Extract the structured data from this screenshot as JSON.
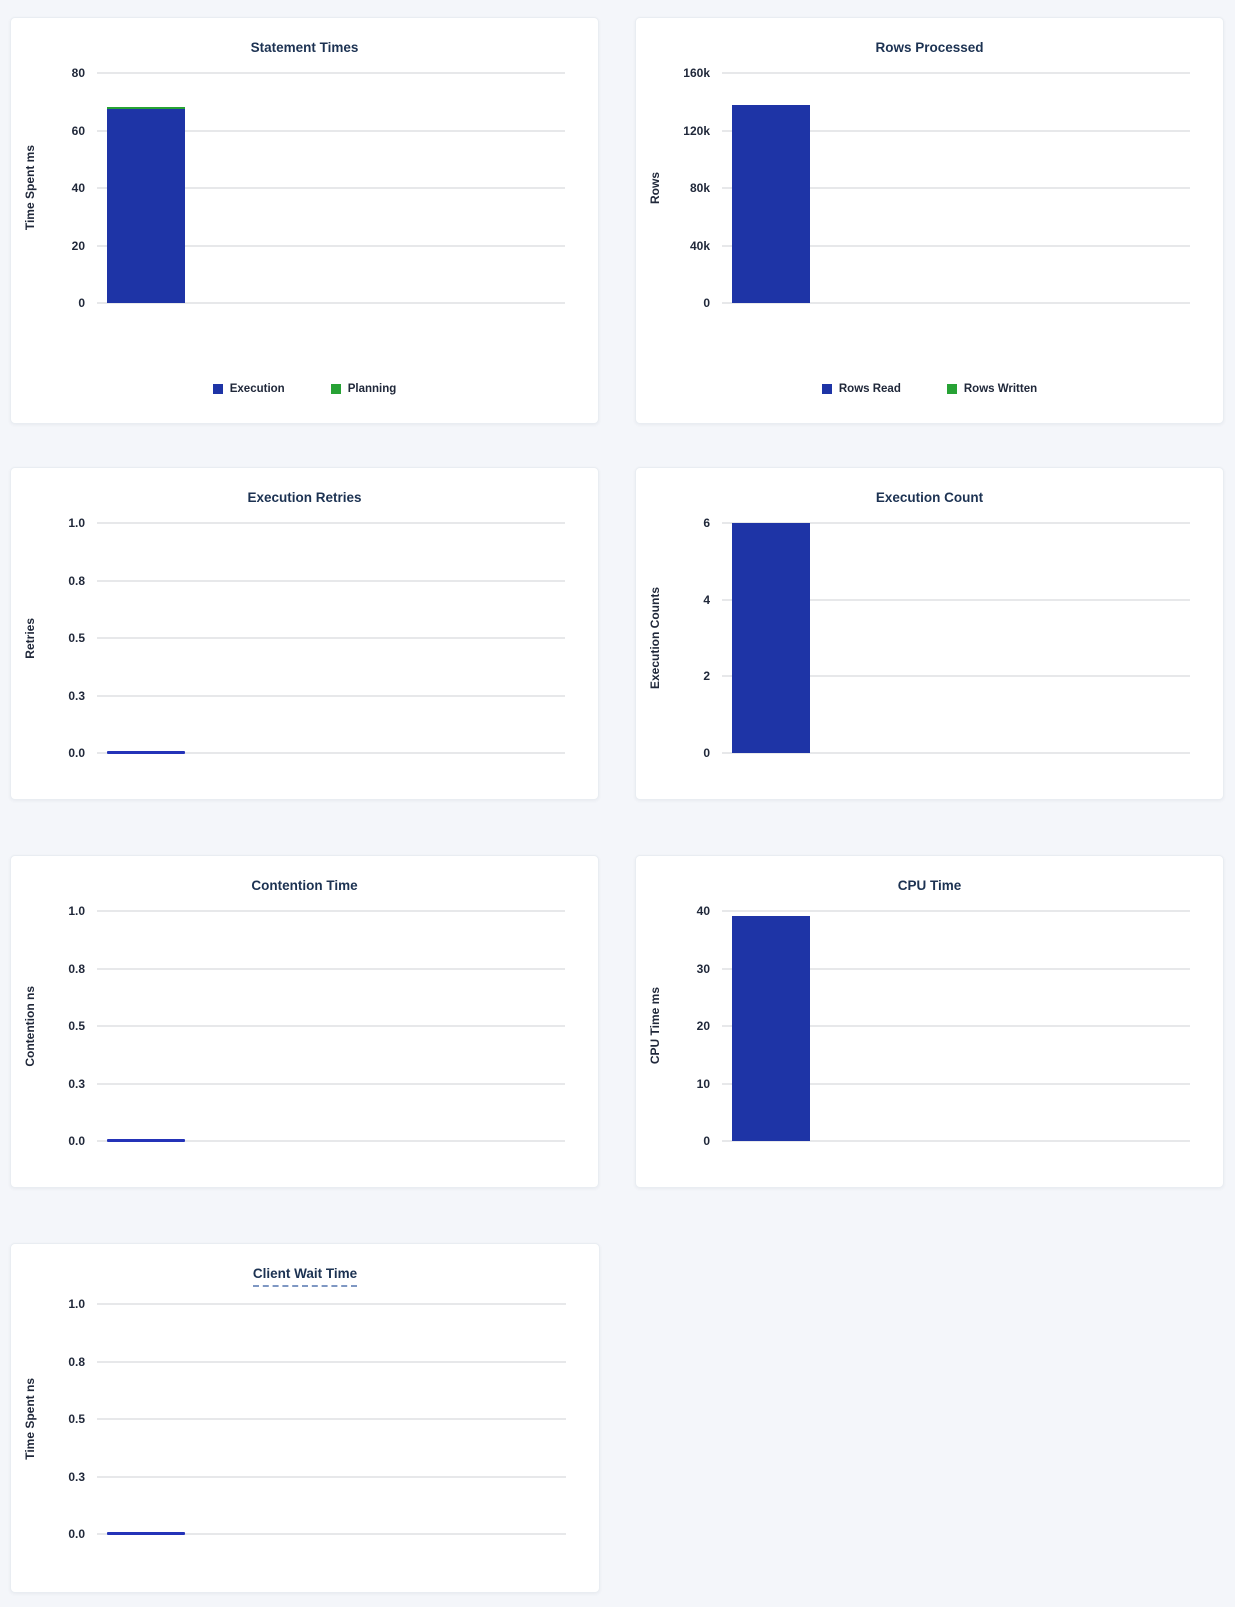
{
  "page": {
    "background_color": "#f4f6fa",
    "card_background": "#ffffff",
    "title_color": "#1c3252",
    "bar_blue": "#1e34a6",
    "bar_green": "#27a235",
    "zero_line_blue": "#2433b8"
  },
  "chart_data": [
    {
      "type": "bar",
      "title": "Statement Times",
      "ylabel": "Time Spent ms",
      "yticks": [
        "80",
        "60",
        "40",
        "20",
        "0"
      ],
      "ymax": 80,
      "ylim": [
        0,
        80
      ],
      "grid": "horizontal",
      "legend_position": "bottom",
      "series": [
        {
          "name": "Execution",
          "value": 67.5,
          "color": "#1e34a6"
        },
        {
          "name": "Planning",
          "value": 0.6,
          "color": "#27a235"
        }
      ],
      "legend": [
        {
          "label": "Execution",
          "color": "#1e34a6"
        },
        {
          "label": "Planning",
          "color": "#27a235"
        }
      ],
      "zero_line": false
    },
    {
      "type": "bar",
      "title": "Rows Processed",
      "ylabel": "Rows",
      "yticks": [
        "160k",
        "120k",
        "80k",
        "40k",
        "0"
      ],
      "ymax": 160000,
      "ylim": [
        0,
        160000
      ],
      "grid": "horizontal",
      "legend_position": "bottom",
      "series": [
        {
          "name": "Rows Read",
          "value": 137500,
          "color": "#1e34a6"
        },
        {
          "name": "Rows Written",
          "value": 0,
          "color": "#27a235"
        }
      ],
      "legend": [
        {
          "label": "Rows Read",
          "color": "#1e34a6"
        },
        {
          "label": "Rows Written",
          "color": "#27a235"
        }
      ],
      "zero_line": false
    },
    {
      "type": "bar",
      "title": "Execution Retries",
      "ylabel": "Retries",
      "yticks": [
        "1.0",
        "0.8",
        "0.5",
        "0.3",
        "0.0"
      ],
      "ymax": 1,
      "ylim": [
        0,
        1
      ],
      "grid": "horizontal",
      "series": [
        {
          "name": "Retries",
          "value": 0,
          "color": "#2433b8"
        }
      ],
      "zero_line": true
    },
    {
      "type": "bar",
      "title": "Execution Count",
      "ylabel": "Execution Counts",
      "yticks": [
        "6",
        "4",
        "2",
        "0"
      ],
      "ymax": 6,
      "ylim": [
        0,
        6
      ],
      "grid": "horizontal",
      "series": [
        {
          "name": "Execution Count",
          "value": 6,
          "color": "#1e34a6"
        }
      ],
      "zero_line": false
    },
    {
      "type": "bar",
      "title": "Contention Time",
      "ylabel": "Contention ns",
      "yticks": [
        "1.0",
        "0.8",
        "0.5",
        "0.3",
        "0.0"
      ],
      "ymax": 1,
      "ylim": [
        0,
        1
      ],
      "grid": "horizontal",
      "series": [
        {
          "name": "Contention",
          "value": 0,
          "color": "#2433b8"
        }
      ],
      "zero_line": true
    },
    {
      "type": "bar",
      "title": "CPU Time",
      "ylabel": "CPU Time ms",
      "yticks": [
        "40",
        "30",
        "20",
        "10",
        "0"
      ],
      "ymax": 40,
      "ylim": [
        0,
        40
      ],
      "grid": "horizontal",
      "series": [
        {
          "name": "CPU Time",
          "value": 39.2,
          "color": "#1e34a6"
        }
      ],
      "zero_line": false
    },
    {
      "type": "bar",
      "title": "Client Wait Time",
      "ylabel": "Time Spent ns",
      "yticks": [
        "1.0",
        "0.8",
        "0.5",
        "0.3",
        "0.0"
      ],
      "ymax": 1,
      "ylim": [
        0,
        1
      ],
      "grid": "horizontal",
      "series": [
        {
          "name": "Client Wait",
          "value": 0,
          "color": "#2433b8"
        }
      ],
      "zero_line": true,
      "title_underline": true
    }
  ]
}
